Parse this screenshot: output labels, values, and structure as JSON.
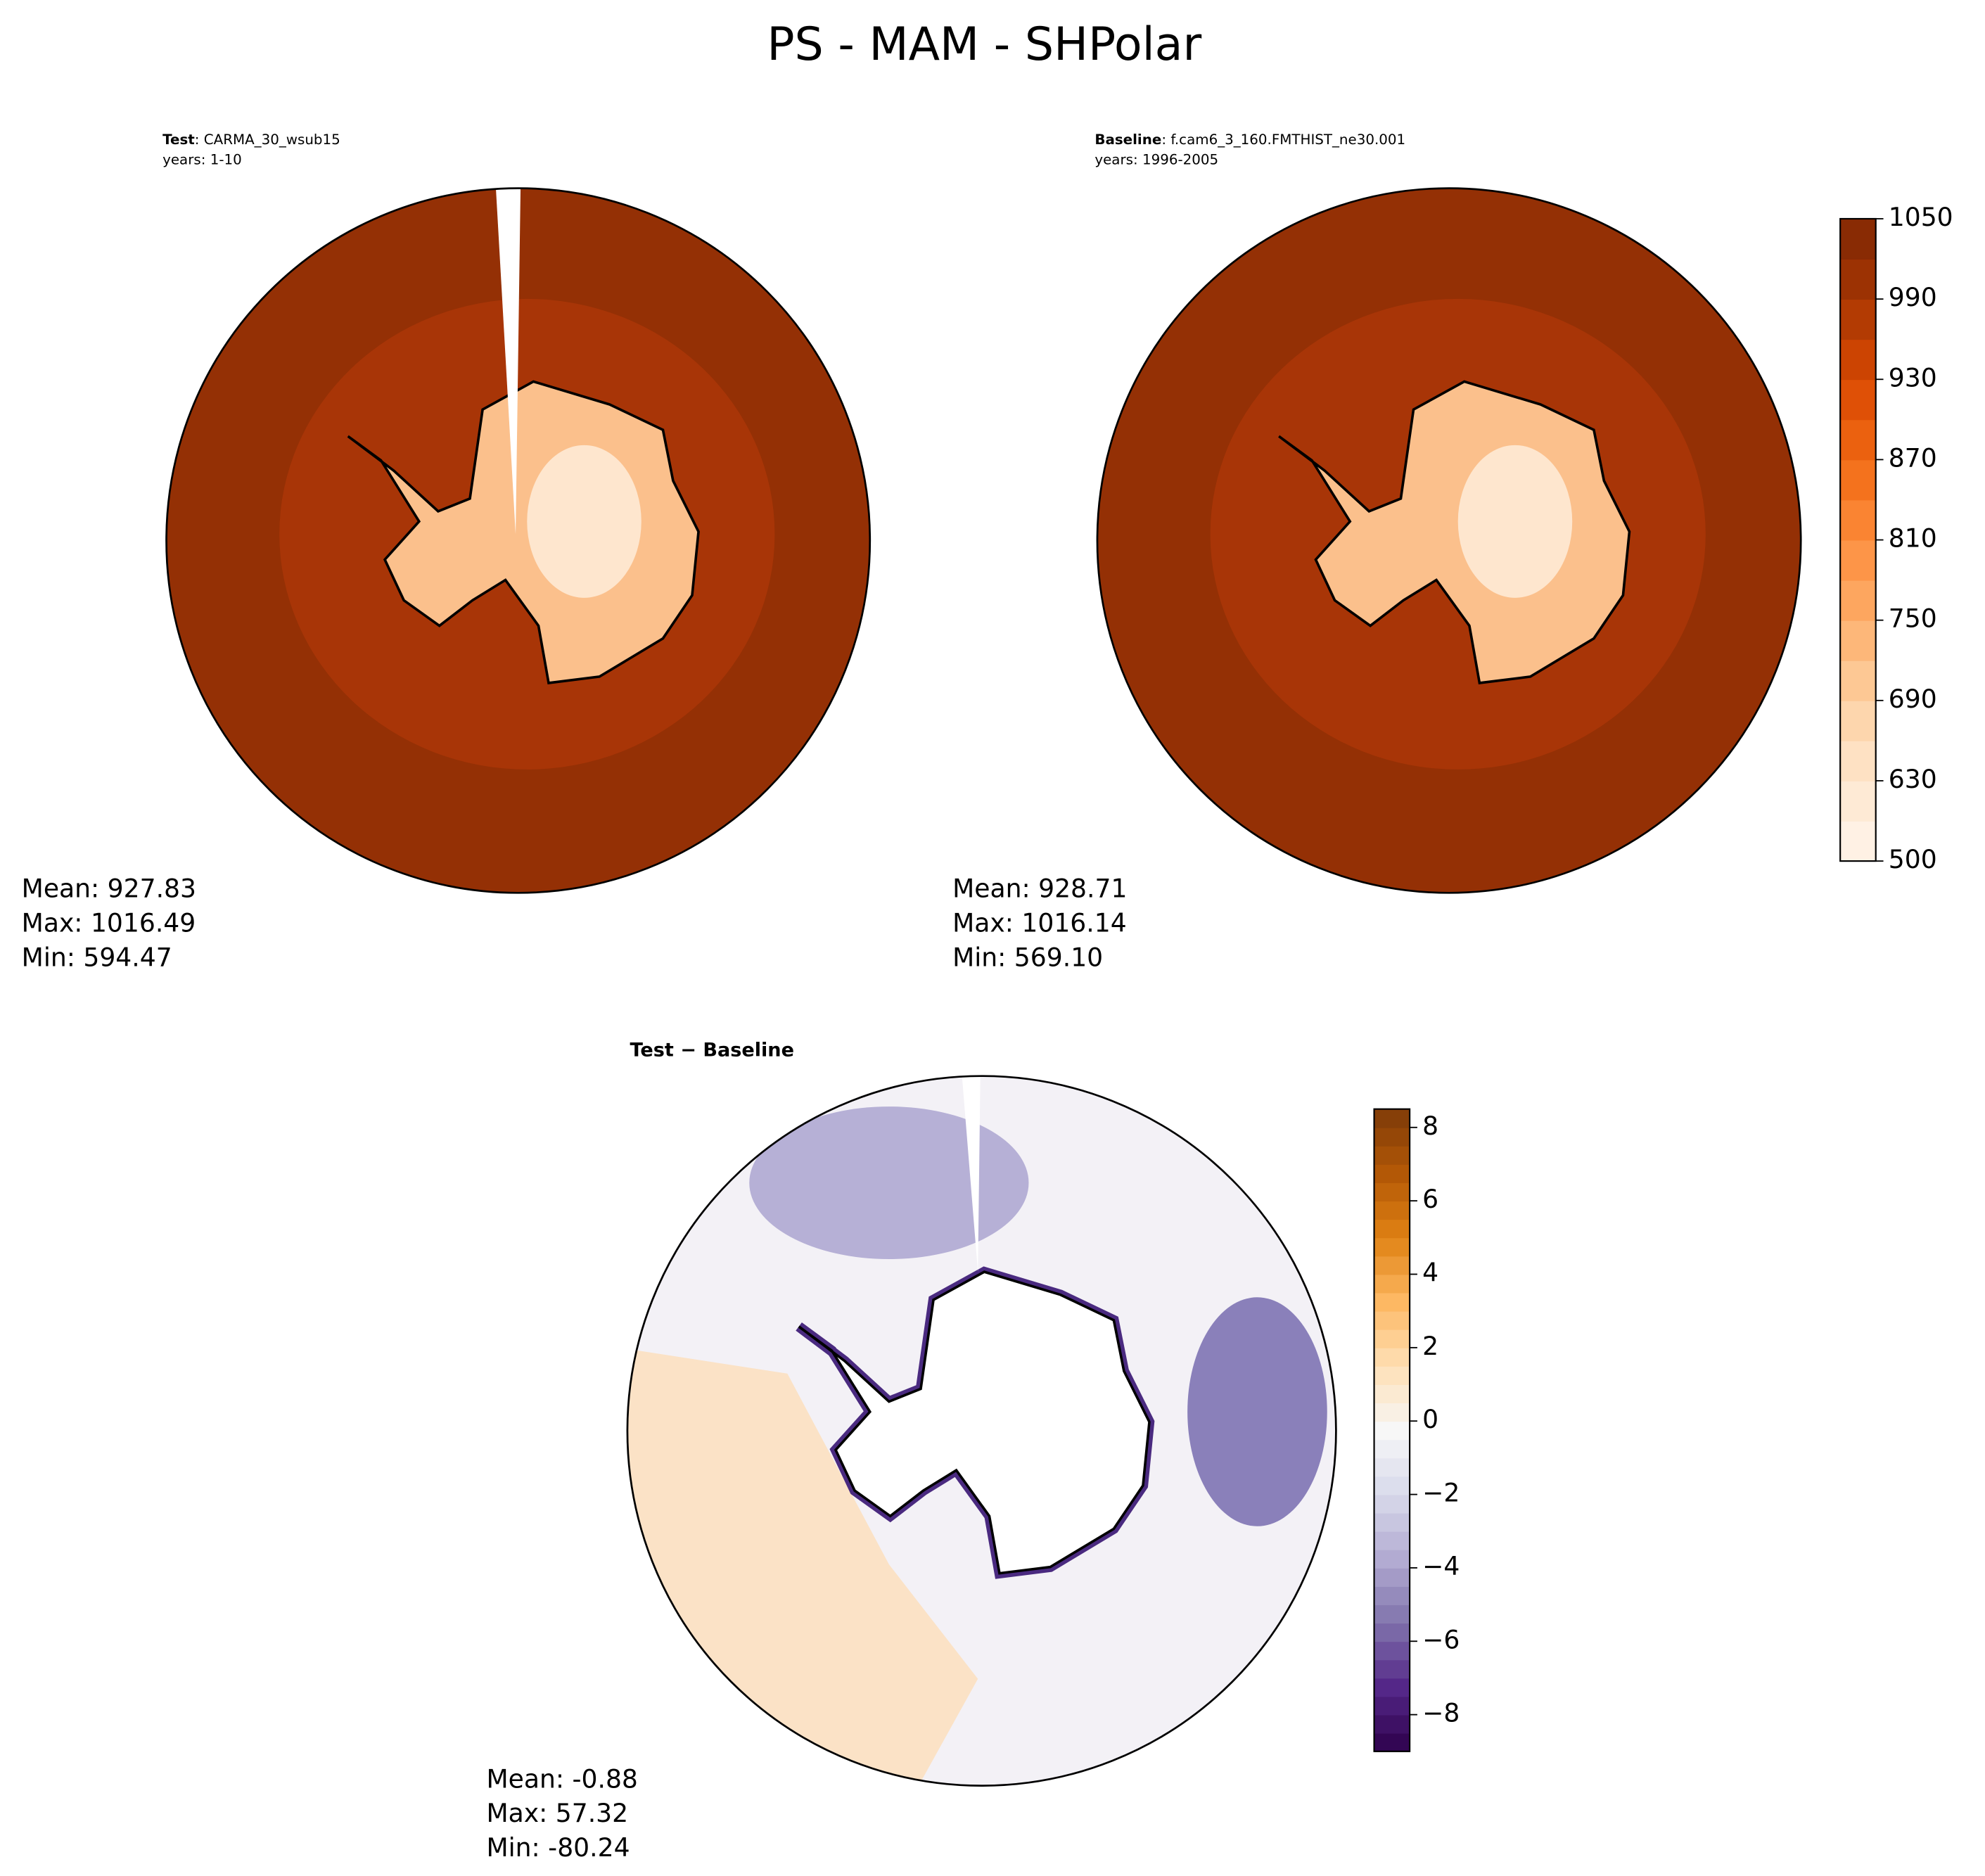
{
  "title": "PS - MAM - SHPolar",
  "chart_data": [
    {
      "type": "map",
      "label": "Test",
      "title": ": CARMA_30_wsub15",
      "subtitle": "years: 1-10",
      "stats": [
        "Mean: 927.83",
        "Max: 1016.49",
        "Min: 594.47"
      ]
    },
    {
      "type": "map",
      "label": "Baseline",
      "title": ": f.cam6_3_160.FMTHIST_ne30.001",
      "subtitle": "years: 1996-2005",
      "stats": [
        "Mean: 928.71",
        "Max: 1016.14",
        "Min: 569.10"
      ],
      "colorbar": {
        "bounds": [
          500,
          600,
          630,
          660,
          690,
          720,
          750,
          780,
          810,
          840,
          870,
          900,
          930,
          960,
          990,
          1020,
          1050
        ],
        "ticks": [
          500,
          630,
          690,
          750,
          810,
          870,
          930,
          990,
          1050
        ],
        "colormap": [
          "#fff5eb",
          "#fee6ce",
          "#fdd0a2",
          "#fdae6b",
          "#fd8d3c",
          "#f16913",
          "#d94801",
          "#a63603",
          "#7f2704"
        ]
      }
    },
    {
      "type": "map",
      "label": "Test − Baseline",
      "stats": [
        "Mean: -0.88",
        "Max: 57.32",
        "Min: -80.24"
      ],
      "colorbar": {
        "lim": [
          -9,
          8.5
        ],
        "levels": [
          -9,
          -8.5,
          -8,
          -7.5,
          -7,
          -6.5,
          -6,
          -5.5,
          -5,
          -4.5,
          -4,
          -3.5,
          -3,
          -2.5,
          -2,
          -1.5,
          -1,
          -0.5,
          0,
          0.5,
          1,
          1.5,
          2,
          2.5,
          3,
          3.5,
          4,
          4.5,
          5,
          5.5,
          6,
          6.5,
          7,
          7.5,
          8,
          8.5
        ],
        "ticks": [
          {
            "value": -8,
            "label": "−8"
          },
          {
            "value": -6,
            "label": "−6"
          },
          {
            "value": -4,
            "label": "−4"
          },
          {
            "value": -2,
            "label": "−2"
          },
          0,
          2,
          4,
          6,
          8
        ],
        "colormap": [
          "#2d004b",
          "#542788",
          "#8073ac",
          "#b2abd2",
          "#d8daeb",
          "#f7f7f7",
          "#fee0b6",
          "#fdb863",
          "#e08214",
          "#b35806",
          "#7f3b08"
        ]
      }
    }
  ]
}
